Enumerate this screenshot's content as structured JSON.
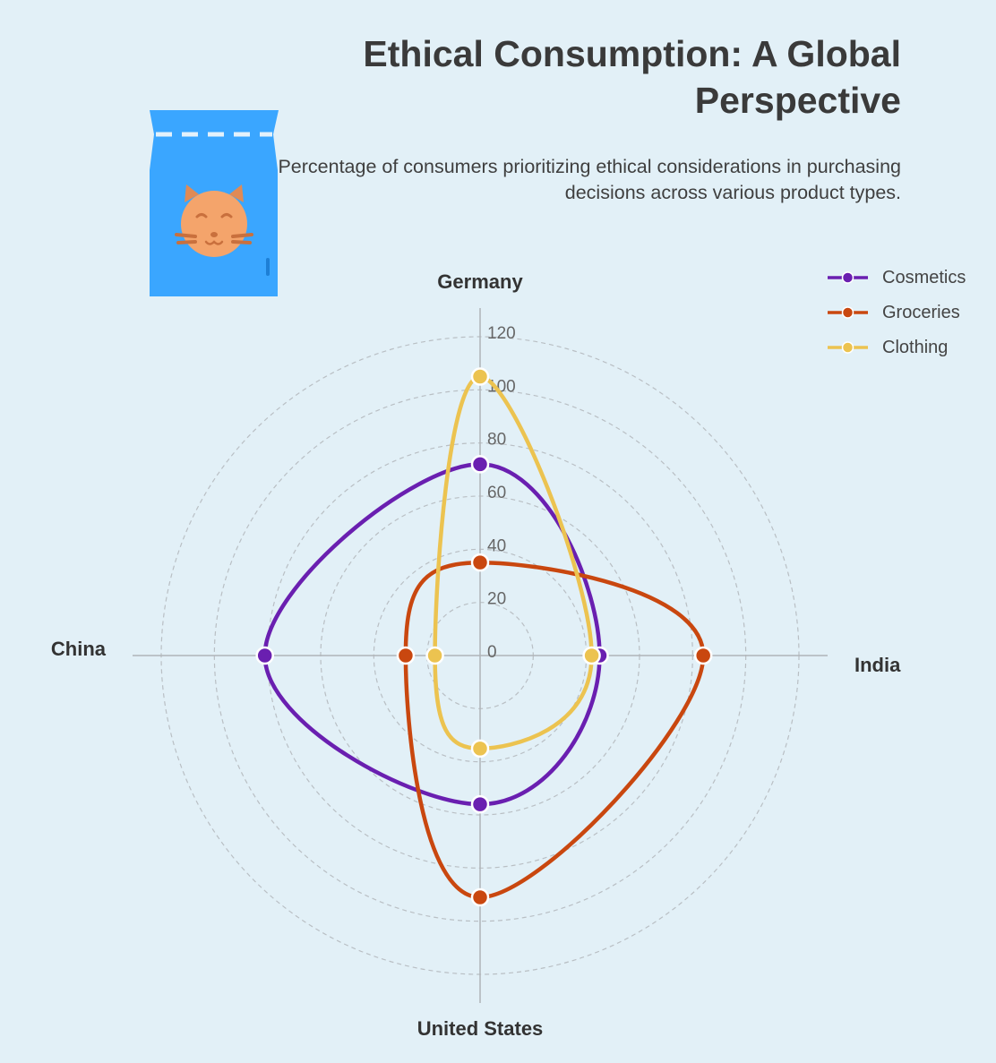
{
  "title": "Ethical Consumption: A Global Perspective",
  "subtitle": "Percentage of consumers prioritizing ethical considerations in purchasing decisions across various product types.",
  "logo_icon": "cat-food-bag-icon",
  "colors": {
    "background": "#e2f0f7",
    "Cosmetics": "#6a1fb0",
    "Groceries": "#c9470f",
    "Clothing": "#ecc350",
    "logo_bag": "#3aa6ff",
    "logo_cat": "#f4a46b"
  },
  "chart_data": {
    "type": "radar",
    "axes": [
      "Germany",
      "India",
      "United States",
      "China"
    ],
    "series": [
      {
        "name": "Cosmetics",
        "values": [
          72,
          45,
          56,
          81
        ]
      },
      {
        "name": "Groceries",
        "values": [
          35,
          84,
          91,
          28
        ]
      },
      {
        "name": "Clothing",
        "values": [
          105,
          42,
          35,
          17
        ]
      }
    ],
    "rlim": [
      0,
      120
    ],
    "ticks": [
      0,
      20,
      40,
      60,
      80,
      100,
      120
    ],
    "grid": true,
    "curved_lines": true,
    "legend_position": "top-right"
  }
}
